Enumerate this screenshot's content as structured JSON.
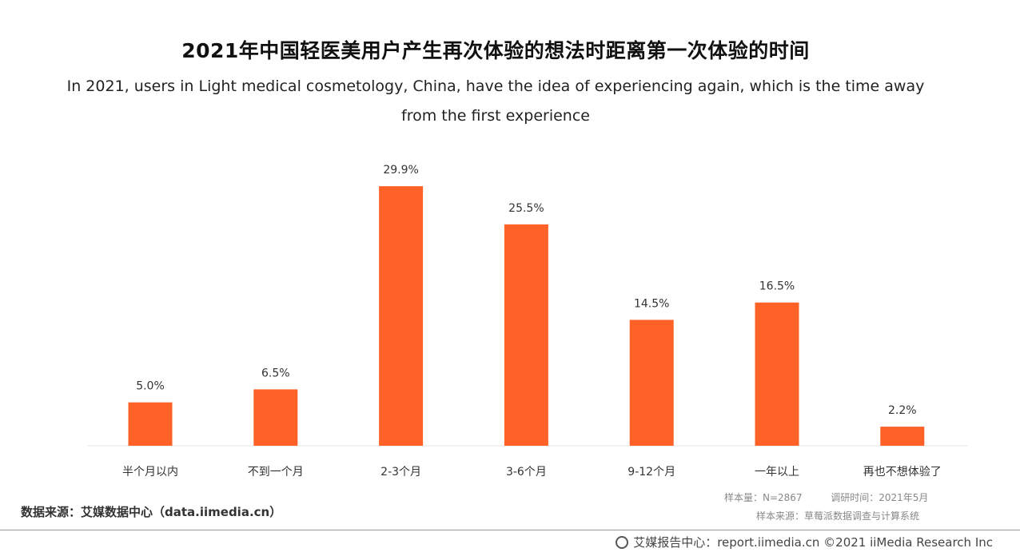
{
  "chart_data": {
    "type": "bar",
    "title": "2021年中国轻医美用户产生再次体验的想法时距离第一次体验的时间",
    "subtitle_line1": "In 2021, users in Light medical cosmetology, China, have the idea of experiencing again, which is the time away",
    "subtitle_line2": "from the first experience",
    "categories": [
      "半个月以内",
      "不到一个月",
      "2-3个月",
      "3-6个月",
      "9-12个月",
      "一年以上",
      "再也不想体验了"
    ],
    "values": [
      5.0,
      6.5,
      29.9,
      25.5,
      14.5,
      16.5,
      2.2
    ],
    "value_labels": [
      "5.0%",
      "6.5%",
      "29.9%",
      "25.5%",
      "14.5%",
      "16.5%",
      "2.2%"
    ],
    "ylim": [
      0,
      30
    ],
    "grid": false,
    "xlabel": "",
    "ylabel": "",
    "bar_color": "#FF6127"
  },
  "meta": {
    "sample_size": "样本量：N=2867",
    "survey_time": "调研时间：2021年5月",
    "sample_source": "样本来源：草莓派数据调查与计算系统"
  },
  "source": "数据来源：艾媒数据中心（data.iimedia.cn）",
  "footer": "艾媒报告中心：report.iimedia.cn  ©2021  iiMedia Research  Inc"
}
